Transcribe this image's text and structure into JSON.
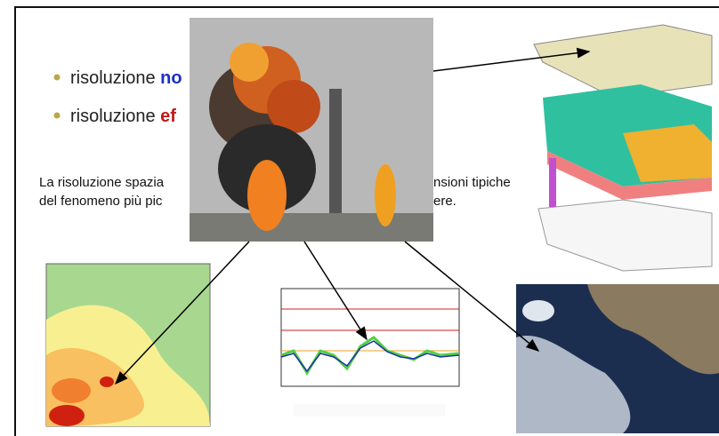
{
  "bullets": [
    {
      "text": "risoluzione",
      "highlight": "no"
    },
    {
      "text": "risoluzione",
      "highlight": "ef"
    }
  ],
  "paragraph": [
    "La risoluzione spazia",
    "nsioni tipiche",
    "del fenomeno più pic",
    "ere."
  ]
}
